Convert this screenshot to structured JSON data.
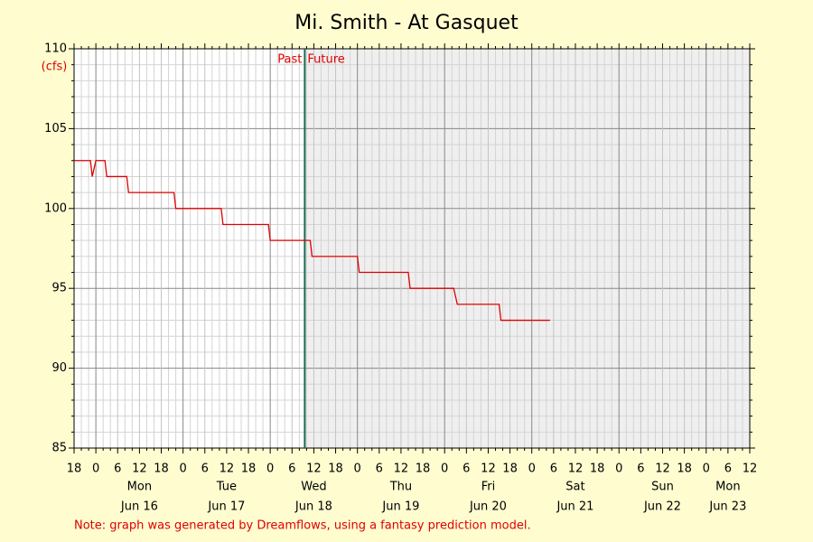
{
  "chart_data": {
    "type": "line",
    "title": "Mi. Smith - At Gasquet",
    "y_label": "(cfs)",
    "note": "Note: graph was generated by Dreamflows, using a fantasy prediction model.",
    "past_label": "Past",
    "future_label": "Future",
    "now_x": 57.5,
    "x": [
      -6,
      -1.5,
      -1,
      0,
      2.5,
      3,
      8.5,
      9,
      21.5,
      22,
      34.5,
      35,
      47.5,
      48,
      59,
      59.5,
      72,
      72.5,
      86,
      86.5,
      98.5,
      99.5,
      111,
      111.5,
      125
    ],
    "series": [
      {
        "color": "#e00000",
        "values": [
          103,
          103,
          102,
          103,
          103,
          102,
          102,
          101,
          101,
          100,
          100,
          99,
          99,
          98,
          98,
          97,
          97,
          96,
          96,
          95,
          95,
          94,
          94,
          93,
          93
        ]
      }
    ],
    "xlim": [
      -6,
      180
    ],
    "ylim": [
      85,
      110
    ],
    "yticks": [
      85,
      90,
      95,
      100,
      105,
      110
    ],
    "yminorticks": [
      86,
      87,
      88,
      89,
      91,
      92,
      93,
      94,
      96,
      97,
      98,
      99,
      101,
      102,
      103,
      104,
      106,
      107,
      108,
      109
    ],
    "xticks": [
      {
        "value": -6,
        "label": "18"
      },
      0,
      6,
      12,
      18,
      {
        "value": 24,
        "label": "0"
      },
      {
        "value": 30,
        "label": "6"
      },
      {
        "value": 36,
        "label": "12"
      },
      {
        "value": 42,
        "label": "18"
      },
      {
        "value": 48,
        "label": "0"
      },
      {
        "value": 54,
        "label": "6"
      },
      {
        "value": 60,
        "label": "12"
      },
      {
        "value": 66,
        "label": "18"
      },
      {
        "value": 72,
        "label": "0"
      },
      {
        "value": 78,
        "label": "6"
      },
      {
        "value": 84,
        "label": "12"
      },
      {
        "value": 90,
        "label": "18"
      },
      {
        "value": 96,
        "label": "0"
      },
      {
        "value": 102,
        "label": "6"
      },
      {
        "value": 108,
        "label": "12"
      },
      {
        "value": 114,
        "label": "18"
      },
      {
        "value": 120,
        "label": "0"
      },
      {
        "value": 126,
        "label": "6"
      },
      {
        "value": 132,
        "label": "12"
      },
      {
        "value": 138,
        "label": "18"
      },
      {
        "value": 144,
        "label": "0"
      },
      {
        "value": 150,
        "label": "6"
      },
      {
        "value": 156,
        "label": "12"
      },
      {
        "value": 162,
        "label": "18"
      },
      {
        "value": 168,
        "label": "0"
      },
      {
        "value": 174,
        "label": "6"
      },
      {
        "value": 180,
        "label": "12"
      }
    ],
    "xminorticks": [
      -4,
      -2,
      2,
      4,
      8,
      10,
      14,
      16,
      20,
      22,
      26,
      28,
      32,
      34,
      38,
      40,
      44,
      46,
      50,
      52,
      56,
      58,
      62,
      64,
      68,
      70,
      74,
      76,
      80,
      82,
      86,
      88,
      92,
      94,
      98,
      100,
      104,
      106,
      110,
      112,
      116,
      118,
      122,
      124,
      128,
      130,
      134,
      136,
      140,
      142,
      146,
      148,
      152,
      154,
      158,
      160,
      164,
      166,
      170,
      172,
      176,
      178
    ],
    "days": [
      {
        "value": 12,
        "weekday": "Mon",
        "date": "Jun 16"
      },
      {
        "value": 36,
        "weekday": "Tue",
        "date": "Jun 17"
      },
      {
        "value": 60,
        "weekday": "Wed",
        "date": "Jun 18"
      },
      {
        "value": 84,
        "weekday": "Thu",
        "date": "Jun 19"
      },
      {
        "value": 108,
        "weekday": "Fri",
        "date": "Jun 20"
      },
      {
        "value": 132,
        "weekday": "Sat",
        "date": "Jun 21"
      },
      {
        "value": 156,
        "weekday": "Sun",
        "date": "Jun 22"
      },
      {
        "value": 174,
        "weekday": "Mon",
        "date": "Jun 23"
      }
    ],
    "grid": true
  }
}
